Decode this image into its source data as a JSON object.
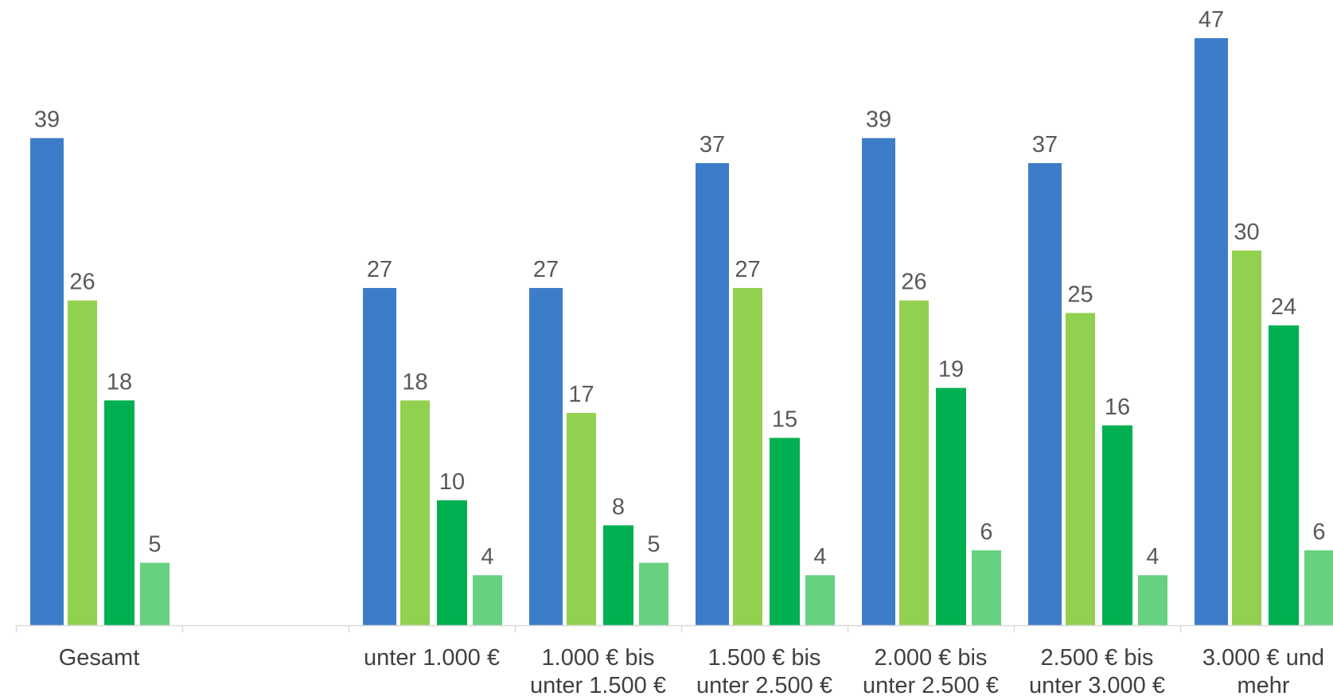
{
  "chart_data": {
    "type": "bar",
    "categories": [
      [
        "Gesamt"
      ],
      [
        ""
      ],
      [
        "unter 1.000 €"
      ],
      [
        "1.000 € bis",
        "unter 1.500 €"
      ],
      [
        "1.500 € bis",
        "unter 2.500 €"
      ],
      [
        "2.000 € bis",
        "unter 2.500 €"
      ],
      [
        "2.500 € bis",
        "unter 3.000 €"
      ],
      [
        "3.000 € und",
        "mehr"
      ]
    ],
    "series": [
      {
        "color": "#3d7cc9",
        "values": [
          39,
          null,
          27,
          27,
          37,
          39,
          37,
          47
        ]
      },
      {
        "color": "#92d050",
        "values": [
          26,
          null,
          18,
          17,
          27,
          26,
          25,
          30
        ]
      },
      {
        "color": "#00b050",
        "values": [
          18,
          null,
          10,
          8,
          15,
          19,
          16,
          24
        ]
      },
      {
        "color": "#66d17f",
        "values": [
          5,
          null,
          4,
          5,
          4,
          6,
          4,
          6
        ]
      }
    ],
    "ylim": [
      0,
      47
    ],
    "grid": false,
    "legend": "none",
    "data_labels": true
  }
}
